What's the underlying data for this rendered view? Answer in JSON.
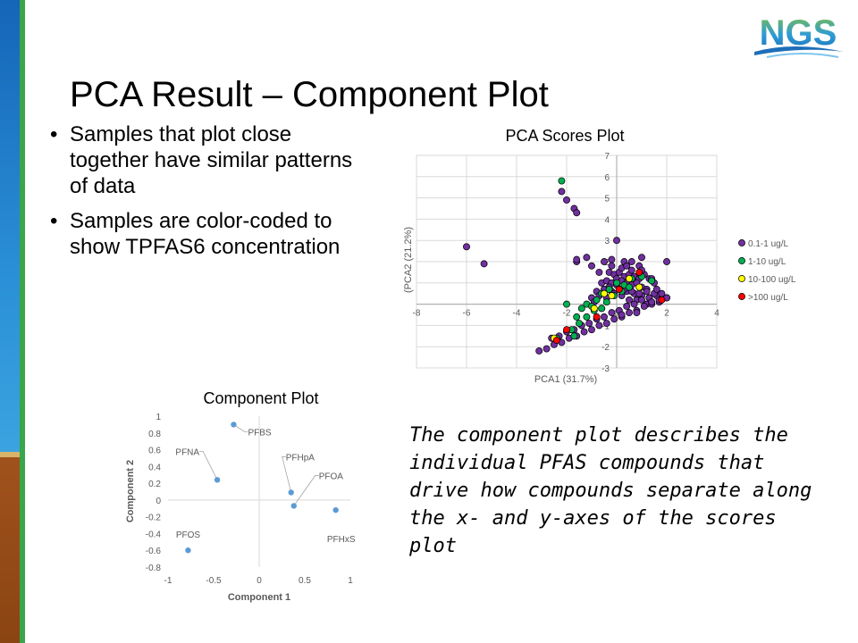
{
  "slide": {
    "title": "PCA Result – Component Plot",
    "bullets": [
      "Samples that plot close together have similar patterns of data",
      "Samples are color-coded to show TPFAS6 concentration"
    ],
    "note": "The component plot describes the individual PFAS compounds that drive how compounds separate along the x- and y-axes of the scores plot",
    "logo_text": "NGS"
  },
  "colors": {
    "purple": "#7030a0",
    "green": "#00b050",
    "yellow": "#ffff00",
    "red": "#ff0000",
    "component_point": "#5b9bd5",
    "sidebar_blue": "#1f7fcf",
    "sidebar_brown": "#8a4412"
  },
  "chart_data": [
    {
      "type": "scatter",
      "title": "PCA Scores Plot",
      "xlabel": "PCA1 (31.7%)",
      "ylabel": "(PCA2 (21.2%)",
      "xlim": [
        -8,
        4
      ],
      "ylim": [
        -3,
        7
      ],
      "xticks": [
        -8,
        -6,
        -4,
        -2,
        0,
        2,
        4
      ],
      "yticks": [
        -3,
        -2,
        -1,
        0,
        1,
        2,
        3,
        4,
        5,
        6,
        7
      ],
      "grid": true,
      "legend_position": "right",
      "series": [
        {
          "name": "0.1-1 ug/L",
          "color": "#7030a0",
          "x": [
            -6.0,
            -5.3,
            -2.2,
            -2.0,
            -1.7,
            -1.6,
            -1.6,
            -1.6,
            -1.2,
            -1.0,
            -0.7,
            -0.5,
            -0.2,
            0.0,
            0.3,
            0.6,
            0.9,
            1.0,
            2.0,
            -0.3,
            -0.1,
            0.1,
            0.3,
            0.5,
            0.7,
            0.9,
            1.1,
            1.3,
            1.5,
            -0.6,
            -0.4,
            -0.2,
            0.0,
            0.2,
            0.4,
            0.6,
            0.8,
            1.0,
            1.2,
            -0.8,
            -0.5,
            -0.2,
            0.1,
            0.4,
            0.7,
            1.0,
            1.3,
            1.6,
            -1.0,
            -0.7,
            -0.4,
            -0.1,
            0.2,
            0.5,
            -0.2,
            0.2,
            0.6,
            1.0,
            1.4,
            1.8,
            2.0,
            1.7,
            1.2,
            0.8,
            -3.1,
            -2.8,
            -2.5,
            -2.2,
            -1.9,
            -1.6,
            -1.3,
            -1.0,
            -0.7,
            -0.4,
            -0.1,
            0.2,
            0.5,
            0.8,
            1.1,
            1.4,
            1.7,
            2.0,
            -2.6,
            -2.3,
            -2.0,
            -1.7,
            -1.4,
            -1.1,
            -0.8,
            -0.5,
            -0.2,
            0.1,
            0.4,
            0.7,
            1.0,
            1.3,
            -0.3,
            0.0,
            0.3,
            0.6,
            0.9,
            1.2,
            1.5,
            -0.6,
            0.2,
            0.8,
            1.4,
            0.4,
            -0.9,
            1.6
          ],
          "y": [
            2.7,
            1.9,
            5.3,
            4.9,
            4.5,
            4.3,
            2.0,
            2.1,
            2.2,
            1.8,
            1.5,
            2.0,
            2.1,
            3.0,
            2.0,
            2.0,
            1.8,
            2.2,
            2.0,
            1.5,
            1.4,
            1.5,
            1.3,
            1.4,
            1.3,
            1.2,
            1.4,
            1.2,
            1.0,
            1.0,
            1.1,
            1.0,
            1.2,
            1.1,
            1.0,
            0.9,
            1.0,
            0.8,
            0.7,
            0.6,
            0.7,
            0.6,
            0.7,
            0.6,
            0.5,
            0.4,
            0.3,
            0.4,
            0.3,
            0.4,
            0.3,
            0.5,
            0.4,
            0.2,
            1.8,
            1.7,
            1.6,
            1.6,
            1.2,
            0.5,
            0.3,
            0.1,
            0.0,
            0.2,
            -2.2,
            -2.1,
            -1.9,
            -1.8,
            -1.6,
            -1.5,
            -1.3,
            -1.2,
            -1.0,
            -0.9,
            -0.7,
            -0.6,
            -0.4,
            -0.3,
            -0.1,
            0.0,
            0.2,
            0.3,
            -1.6,
            -1.5,
            -1.3,
            -1.2,
            -1.0,
            -0.9,
            -0.7,
            -0.6,
            -0.4,
            -0.3,
            -0.1,
            0.0,
            0.2,
            0.3,
            0.8,
            0.9,
            0.7,
            0.6,
            0.5,
            0.6,
            0.5,
            -0.2,
            -0.5,
            -0.4,
            0.1,
            1.8,
            0.1,
            0.7
          ]
        },
        {
          "name": "1-10 ug/L",
          "color": "#00b050",
          "x": [
            -2.2,
            -2.0,
            -1.6,
            -1.4,
            -1.2,
            -1.0,
            -0.8,
            -0.6,
            -0.3,
            0.0,
            0.3,
            0.6,
            1.0,
            1.4,
            -1.8,
            -1.5,
            -1.2,
            -0.9,
            -0.6,
            -0.4,
            -0.1,
            0.2,
            0.5,
            -2.4,
            -1.7
          ],
          "y": [
            5.8,
            0.0,
            -0.6,
            -0.2,
            0.0,
            -0.1,
            0.2,
            0.5,
            0.7,
            1.0,
            0.9,
            1.2,
            1.3,
            1.1,
            -1.2,
            -0.9,
            -0.6,
            -0.3,
            -0.2,
            0.1,
            0.4,
            0.6,
            0.8,
            -1.6,
            -1.5
          ]
        },
        {
          "name": "10-100 ug/L",
          "color": "#ffff00",
          "x": [
            -2.5,
            -0.9,
            -0.5,
            -0.2,
            0.5,
            0.9
          ],
          "y": [
            -1.6,
            -0.2,
            0.5,
            0.4,
            1.2,
            0.8
          ]
        },
        {
          "name": ">100 ug/L",
          "color": "#ff0000",
          "x": [
            -2.4,
            -2.0,
            -0.8,
            0.1,
            0.9,
            1.8
          ],
          "y": [
            -1.7,
            -1.2,
            -0.6,
            0.7,
            1.5,
            0.2
          ]
        }
      ]
    },
    {
      "type": "scatter",
      "title": "Component Plot",
      "xlabel": "Component  1",
      "ylabel": "Component  2",
      "xlim": [
        -1,
        1
      ],
      "ylim": [
        -0.8,
        1
      ],
      "xticks": [
        -1,
        -0.5,
        0,
        0.5,
        1
      ],
      "xtick_labels": [
        "-1",
        "-0.5",
        "0",
        "0.5",
        "1"
      ],
      "yticks": [
        -0.8,
        -0.6,
        -0.4,
        -0.2,
        0,
        0.2,
        0.4,
        0.6,
        0.8,
        1
      ],
      "ytick_labels": [
        "-0.8",
        "-0.6",
        "-0.4",
        "-0.2",
        "0",
        "0.2",
        "0.4",
        "0.6",
        "0.8",
        "1"
      ],
      "grid": false,
      "points": [
        {
          "label": "PFBS",
          "x": -0.28,
          "y": 0.9
        },
        {
          "label": "PFNA",
          "x": -0.46,
          "y": 0.24
        },
        {
          "label": "PFHpA",
          "x": 0.35,
          "y": 0.09
        },
        {
          "label": "PFOA",
          "x": 0.38,
          "y": -0.07
        },
        {
          "label": "PFHxS",
          "x": 0.84,
          "y": -0.12
        },
        {
          "label": "PFOS",
          "x": -0.78,
          "y": -0.6
        }
      ]
    }
  ]
}
